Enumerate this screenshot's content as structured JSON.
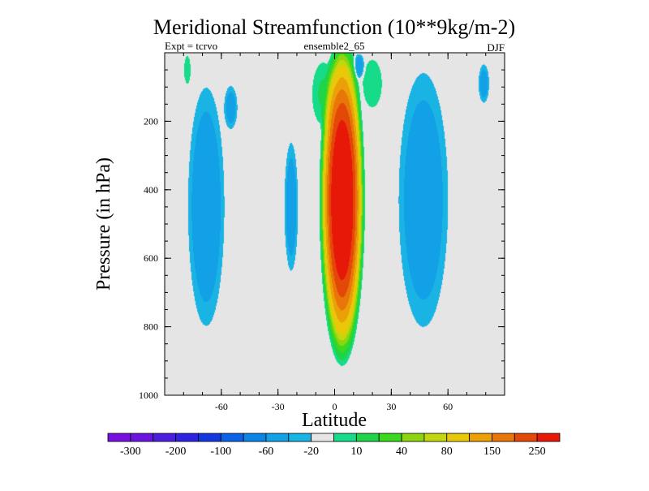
{
  "chart_data": {
    "type": "heatmap",
    "title": "Meridional Streamfunction (10**9kg/m-2)",
    "subtitle_left": "Expt = tcrvo",
    "subtitle_center": "ensemble2_65",
    "subtitle_right": "DJF",
    "xlabel": "Latitude",
    "ylabel": "Pressure (in hPa)",
    "xlim": [
      -90,
      90
    ],
    "ylim": [
      1000,
      0
    ],
    "x_ticks": [
      {
        "value": -60,
        "label": "-60"
      },
      {
        "value": -30,
        "label": "-30"
      },
      {
        "value": 0,
        "label": "0"
      },
      {
        "value": 30,
        "label": "30"
      },
      {
        "value": 60,
        "label": "60"
      }
    ],
    "y_ticks": [
      {
        "value": 200,
        "label": "200"
      },
      {
        "value": 400,
        "label": "400"
      },
      {
        "value": 600,
        "label": "600"
      },
      {
        "value": 800,
        "label": "800"
      },
      {
        "value": 1000,
        "label": "1000"
      }
    ],
    "colorbar": {
      "colors": [
        "#7a10e0",
        "#6a16e0",
        "#4b1ee0",
        "#2f22e0",
        "#1438e0",
        "#0b62e6",
        "#0a84e6",
        "#12a0e6",
        "#19b4e4",
        "#e5e5e5",
        "#16dc8a",
        "#20d44a",
        "#3ad81e",
        "#8ed410",
        "#c2d80e",
        "#e8c808",
        "#eca008",
        "#e87608",
        "#e44808",
        "#e81808"
      ],
      "labels": [
        "-300",
        "-200",
        "-100",
        "-60",
        "-20",
        "10",
        "40",
        "80",
        "150",
        "250"
      ]
    },
    "fields": [
      {
        "name": "sh-trop-cell",
        "lat": -68,
        "p": 450,
        "w": 13,
        "h": 470,
        "amp": -32,
        "core": 0.3
      },
      {
        "name": "sh-band-2",
        "lat": -55,
        "p": 160,
        "w": 5,
        "h": 90,
        "amp": -25,
        "core": 0.3
      },
      {
        "name": "sh-band-3",
        "lat": -23,
        "p": 450,
        "w": 5,
        "h": 260,
        "amp": -28,
        "core": 0.3
      },
      {
        "name": "nh-ferrel",
        "lat": 47,
        "p": 430,
        "w": 18,
        "h": 510,
        "amp": -33,
        "core": 0.25
      },
      {
        "name": "nh-polar",
        "lat": 79,
        "p": 90,
        "w": 4,
        "h": 80,
        "amp": -25,
        "core": 0.3
      },
      {
        "name": "tropic-top",
        "lat": 13,
        "p": 40,
        "w": 4,
        "h": 50,
        "amp": -30,
        "core": 0.3
      },
      {
        "name": "hadley-core",
        "lat": 4,
        "p": 430,
        "w": 13,
        "h": 520,
        "amp": 320,
        "core": 0.35
      },
      {
        "name": "green-upper",
        "lat": -6,
        "p": 120,
        "w": 9,
        "h": 140,
        "amp": 20,
        "core": 0.3
      },
      {
        "name": "green-upper-2",
        "lat": 20,
        "p": 90,
        "w": 8,
        "h": 110,
        "amp": 18,
        "core": 0.3
      },
      {
        "name": "sh-green-streak",
        "lat": -78,
        "p": 50,
        "w": 3,
        "h": 70,
        "amp": 15,
        "core": 0.3
      }
    ]
  }
}
